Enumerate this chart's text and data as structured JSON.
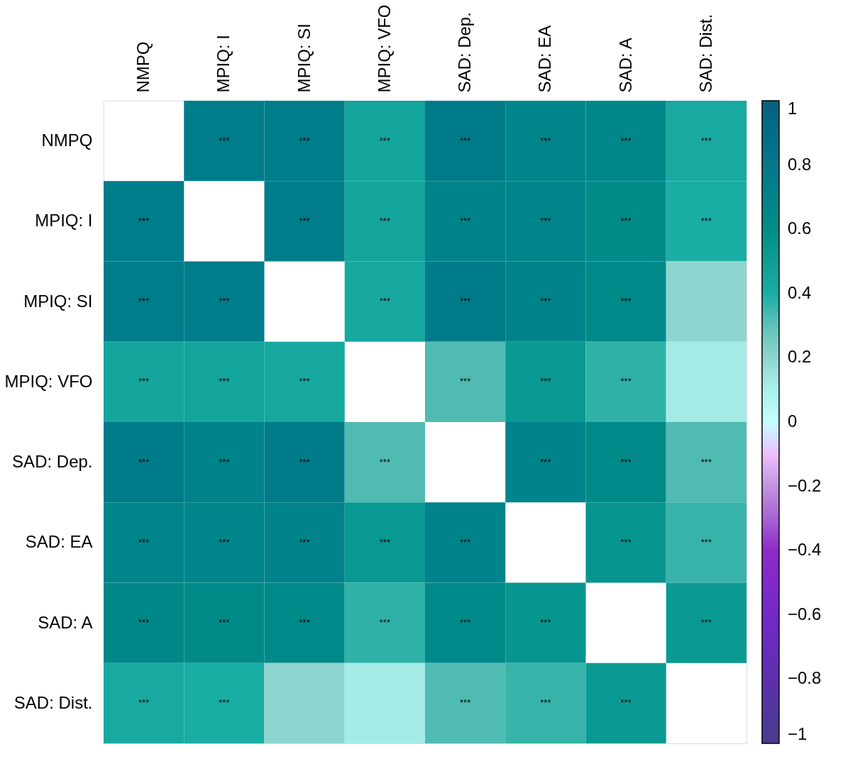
{
  "chart_data": {
    "type": "heatmap",
    "categories": [
      "NMPQ",
      "MPIQ: I",
      "MPIQ: SI",
      "MPIQ: VFO",
      "SAD: Dep.",
      "SAD: EA",
      "SAD: A",
      "SAD: Dist."
    ],
    "y_categories": [
      "NMPQ",
      "MPIQ: I",
      "MPIQ: SI",
      "MPIQ: VFO",
      "SAD: Dep.",
      "SAD: EA",
      "SAD: A",
      "SAD: Dist."
    ],
    "cells": [
      [
        null,
        0.75,
        0.75,
        0.45,
        0.77,
        0.68,
        0.66,
        0.42
      ],
      [
        0.75,
        null,
        0.75,
        0.45,
        0.7,
        0.68,
        0.62,
        0.4
      ],
      [
        0.75,
        0.75,
        null,
        0.43,
        0.77,
        0.7,
        0.64,
        0.2
      ],
      [
        0.45,
        0.45,
        0.43,
        null,
        0.33,
        0.53,
        0.38,
        0.12
      ],
      [
        0.77,
        0.7,
        0.77,
        0.33,
        null,
        0.7,
        0.64,
        0.33
      ],
      [
        0.68,
        0.68,
        0.7,
        0.53,
        0.7,
        null,
        0.55,
        0.37
      ],
      [
        0.66,
        0.62,
        0.64,
        0.38,
        0.64,
        0.55,
        null,
        0.52
      ],
      [
        0.42,
        0.4,
        0.2,
        0.12,
        0.33,
        0.37,
        0.52,
        null
      ]
    ],
    "cell_labels": [
      [
        null,
        "***",
        "***",
        "***",
        "***",
        "***",
        "***",
        "***"
      ],
      [
        "***",
        null,
        "***",
        "***",
        "***",
        "***",
        "***",
        "***"
      ],
      [
        "***",
        "***",
        null,
        "***",
        "***",
        "***",
        "***",
        null
      ],
      [
        "***",
        "***",
        "***",
        null,
        "***",
        "***",
        "***",
        null
      ],
      [
        "***",
        "***",
        "***",
        "***",
        null,
        "***",
        "***",
        "***"
      ],
      [
        "***",
        "***",
        "***",
        "***",
        "***",
        null,
        "***",
        "***"
      ],
      [
        "***",
        "***",
        "***",
        "***",
        "***",
        "***",
        null,
        "***"
      ],
      [
        "***",
        "***",
        null,
        null,
        "***",
        "***",
        "***",
        null
      ]
    ],
    "clim": [
      -1,
      1
    ],
    "cticks": [
      -1,
      -0.8,
      -0.6,
      -0.4,
      -0.2,
      0,
      0.2,
      0.4,
      0.6,
      0.8,
      1
    ]
  }
}
